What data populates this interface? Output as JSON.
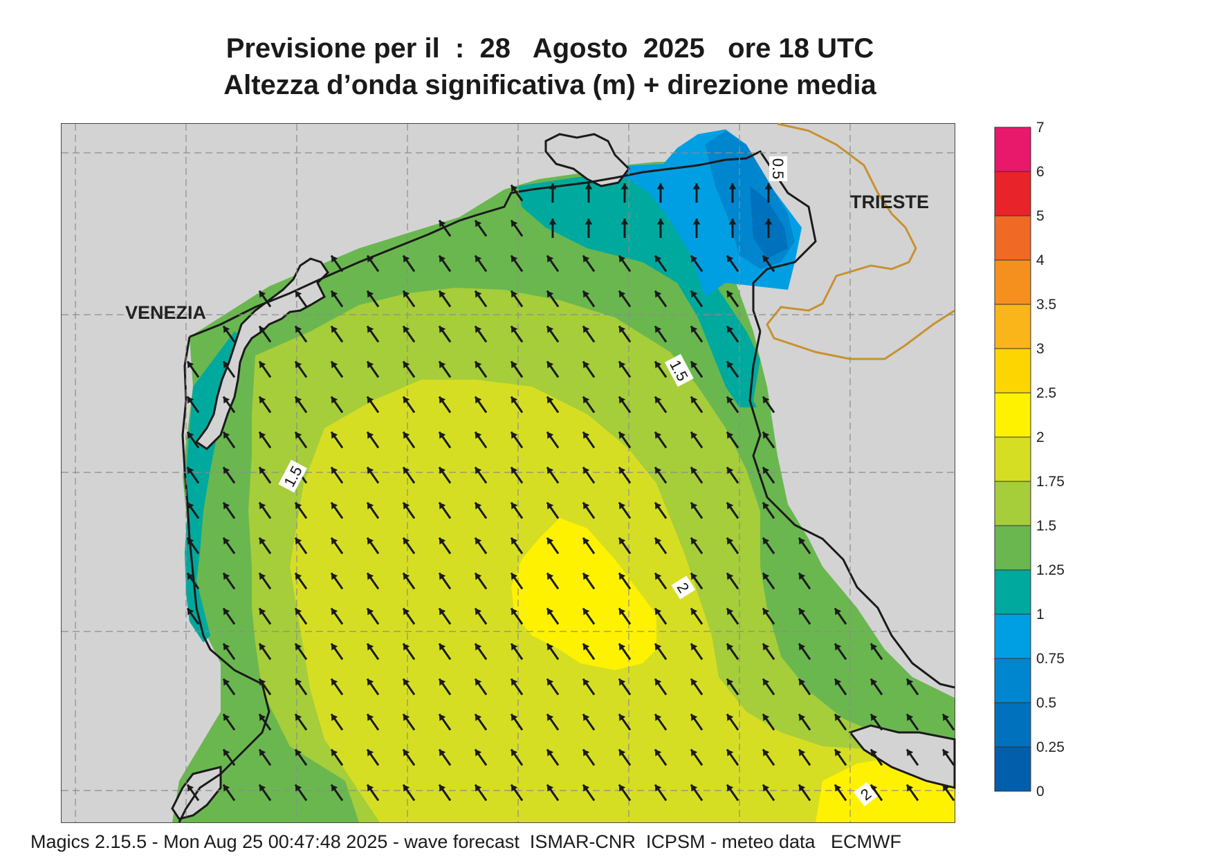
{
  "title": {
    "line1": "Previsione per il  :  28   Agosto  2025   ore 18 UTC",
    "line2": "Altezza d’onda significativa (m) + direzione media"
  },
  "cities": {
    "venezia": "VENEZIA",
    "trieste": "TRIESTE"
  },
  "contour_labels": [
    "0.5",
    "1.5",
    "1.5",
    "2",
    "2"
  ],
  "legend": {
    "levels": [
      "7",
      "6",
      "5",
      "4",
      "3.5",
      "3",
      "2.5",
      "2",
      "1.75",
      "1.5",
      "1.25",
      "1",
      "0.75",
      "0.5",
      "0.25",
      "0"
    ],
    "colors": [
      "#e8186a",
      "#e8232a",
      "#f06a25",
      "#f5901f",
      "#f9b51a",
      "#fdd500",
      "#fff200",
      "#d6de23",
      "#a6cd3a",
      "#6ab750",
      "#00a99d",
      "#009fe3",
      "#0086cf",
      "#0071bc",
      "#005eab"
    ]
  },
  "colors": {
    "land": "#d3d3d4",
    "coast": "#1a1a1a",
    "arrow": "#1a1a1a",
    "border": "#c8912e"
  },
  "footer": "Magics 2.15.5 - Mon Aug 25 00:47:48 2025 - wave forecast  ISMAR-CNR  ICPSM - meteo data   ECMWF"
}
